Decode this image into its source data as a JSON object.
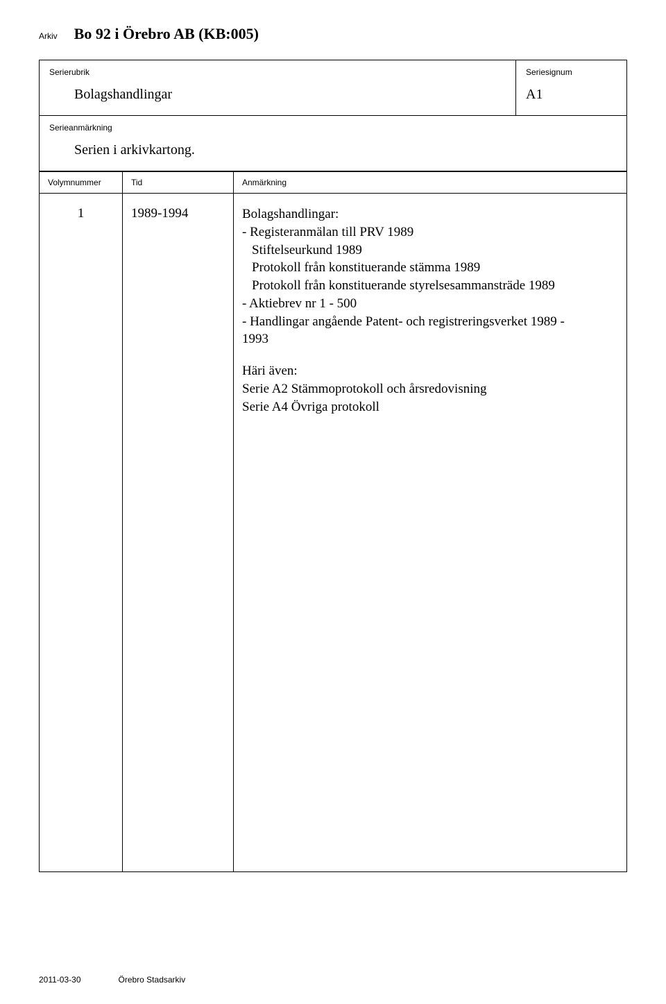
{
  "labels": {
    "arkiv": "Arkiv",
    "serierubrik": "Serierubrik",
    "seriesignum": "Seriesignum",
    "serieanm": "Serieanmärkning",
    "volnum": "Volymnummer",
    "tid": "Tid",
    "anm": "Anmärkning"
  },
  "archive": {
    "title": "Bo 92 i Örebro AB (KB:005)"
  },
  "series": {
    "rubrik": "Bolagshandlingar",
    "signum": "A1",
    "note": "Serien i arkivkartong."
  },
  "volume": {
    "num": "1",
    "tid": "1989-1994",
    "anm_lines": [
      "Bolagshandlingar:",
      "- Registeranmälan till PRV 1989",
      "  Stiftelseurkund  1989",
      "  Protokoll från konstituerande stämma 1989",
      "  Protokoll från konstituerande styrelsesammansträde 1989",
      "- Aktiebrev nr 1 - 500",
      "- Handlingar angående Patent- och registreringsverket 1989 -",
      "1993"
    ],
    "hari_header": "Häri även:",
    "hari_lines": [
      "Serie A2 Stämmoprotokoll och årsredovisning",
      "Serie A4  Övriga protokoll"
    ]
  },
  "footer": {
    "date": "2011-03-30",
    "place": "Örebro Stadsarkiv"
  }
}
